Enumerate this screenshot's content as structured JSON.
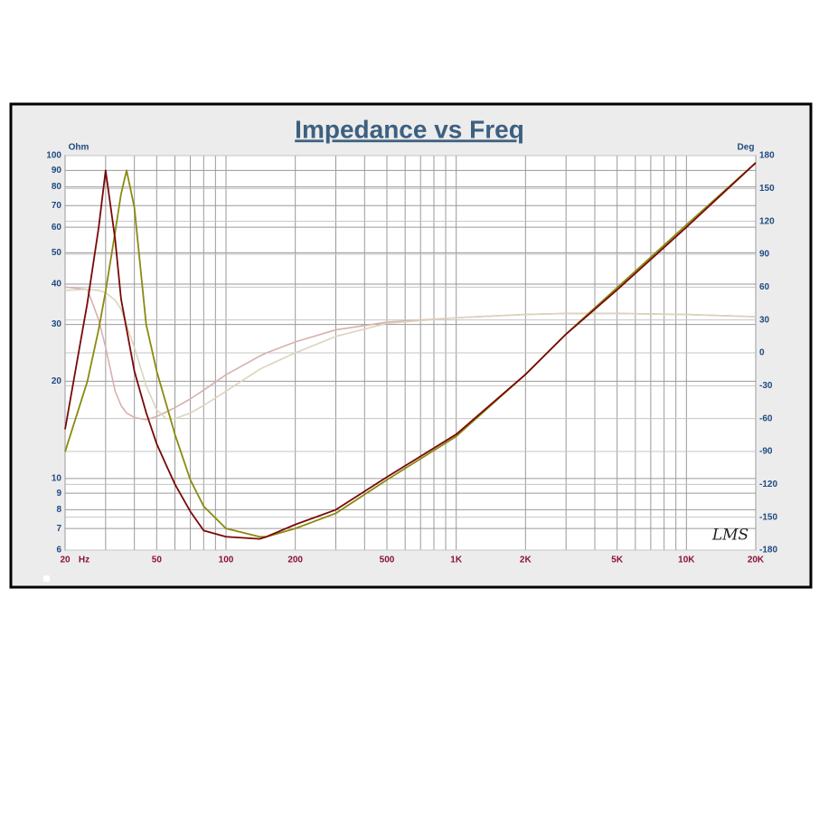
{
  "chart_data": {
    "type": "line",
    "title": "Impedance vs Freq",
    "x_label": "Hz",
    "y_label": "Ohm",
    "y2_label": "Deg",
    "annotation": "LMS",
    "log_x": true,
    "log_y": true,
    "grid": true,
    "xlim": [
      20,
      20000
    ],
    "ylim": [
      6,
      100
    ],
    "y2lim": [
      -180,
      180
    ],
    "xticks": [
      20,
      50,
      100,
      200,
      500,
      {
        "value": 1000,
        "label": "1K"
      },
      {
        "value": 2000,
        "label": "2K"
      },
      {
        "value": 5000,
        "label": "5K"
      },
      {
        "value": 10000,
        "label": "10K"
      },
      {
        "value": 20000,
        "label": "20K"
      }
    ],
    "xgrid": [
      20,
      30,
      40,
      50,
      60,
      70,
      80,
      90,
      100,
      200,
      300,
      400,
      500,
      600,
      700,
      800,
      900,
      1000,
      2000,
      3000,
      4000,
      5000,
      6000,
      7000,
      8000,
      9000,
      10000,
      20000
    ],
    "yticks": [
      6,
      7,
      8,
      9,
      10,
      20,
      30,
      40,
      50,
      60,
      70,
      80,
      90,
      100
    ],
    "y2ticks": [
      -180,
      -150,
      -120,
      -90,
      -60,
      -30,
      0,
      30,
      60,
      90,
      120,
      150,
      180
    ],
    "x": [
      20,
      25,
      28,
      30,
      33,
      35,
      37,
      40,
      45,
      50,
      55,
      60,
      70,
      80,
      100,
      140,
      150,
      200,
      300,
      500,
      1000,
      2000,
      3000,
      5000,
      10000,
      20000
    ],
    "series": [
      {
        "color": "#d8b0b0",
        "axis": "y2",
        "values": [
          60,
          58,
          30,
          5,
          -35,
          -48,
          -55,
          -59,
          -61,
          -58,
          -54,
          -50,
          -42,
          -34,
          -20,
          -3,
          0,
          10,
          21,
          28,
          32,
          35,
          36,
          36,
          35,
          33
        ]
      },
      {
        "color": "#dcd4bc",
        "axis": "y2",
        "values": [
          57,
          58,
          57,
          55,
          48,
          40,
          25,
          5,
          -30,
          -52,
          -60,
          -60,
          -55,
          -48,
          -35,
          -15,
          -12,
          0,
          15,
          27,
          32,
          35,
          36,
          36,
          35,
          33
        ]
      },
      {
        "color": "#8a8a10",
        "values": [
          12.1,
          20,
          29,
          38,
          58,
          76,
          90,
          69,
          30,
          21.5,
          17,
          13.7,
          9.9,
          8.2,
          7.0,
          6.6,
          6.6,
          7.0,
          7.8,
          9.9,
          13.5,
          21,
          28,
          39,
          61,
          95
        ]
      },
      {
        "color": "#7a0808",
        "values": [
          14.2,
          35,
          60,
          90,
          55,
          36,
          29,
          21.5,
          16,
          12.8,
          11,
          9.6,
          7.9,
          6.9,
          6.6,
          6.5,
          6.6,
          7.2,
          8.0,
          10.1,
          13.7,
          21,
          28,
          38.4,
          60,
          95
        ]
      }
    ]
  }
}
